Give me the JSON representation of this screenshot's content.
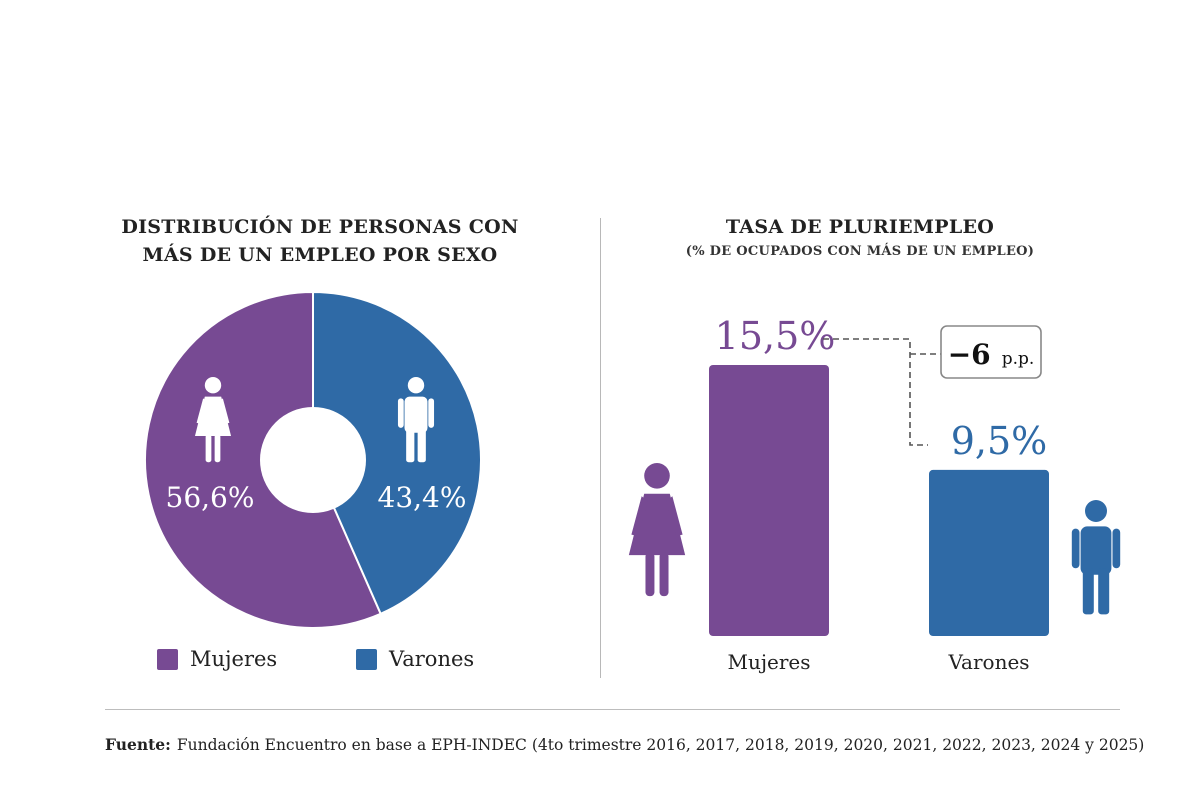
{
  "colors": {
    "mujeres": "#774a93",
    "varones": "#2f6aa6"
  },
  "icons": {
    "female": "woman-icon",
    "male": "man-icon"
  },
  "left_chart": {
    "title_line1": "DISTRIBUCIÓN DE PERSONAS CON",
    "title_line2": "MÁS DE UN EMPLEO POR SEXO"
  },
  "right_chart": {
    "title": "TASA DE PLURIEMPLEO",
    "subtitle": "(% DE OCUPADOS CON MÁS DE UN EMPLEO)",
    "difference_value": "−6",
    "difference_unit": "p.p."
  },
  "legend": [
    {
      "label": "Mujeres"
    },
    {
      "label": "Varones"
    }
  ],
  "footer": {
    "label": "Fuente:",
    "text": "Fundación Encuentro en base a EPH-INDEC (4to trimestre 2016, 2017, 2018, 2019, 2020, 2021, 2022, 2023, 2024 y 2025)"
  },
  "chart_data": [
    {
      "type": "pie",
      "title": "DISTRIBUCIÓN DE PERSONAS CON MÁS DE UN EMPLEO POR SEXO",
      "labels": [
        "Mujeres",
        "Varones"
      ],
      "values": [
        56.6,
        43.4
      ],
      "value_labels": [
        "56,6%",
        "43,4%"
      ],
      "legend_position": "bottom"
    },
    {
      "type": "bar",
      "title": "TASA DE PLURIEMPLEO",
      "subtitle": "(% DE OCUPADOS CON MÁS DE UN EMPLEO)",
      "categories": [
        "Mujeres",
        "Varones"
      ],
      "values": [
        15.5,
        9.5
      ],
      "value_labels": [
        "15,5%",
        "9,5%"
      ],
      "annotation": "−6 p.p.",
      "grid": false
    }
  ]
}
